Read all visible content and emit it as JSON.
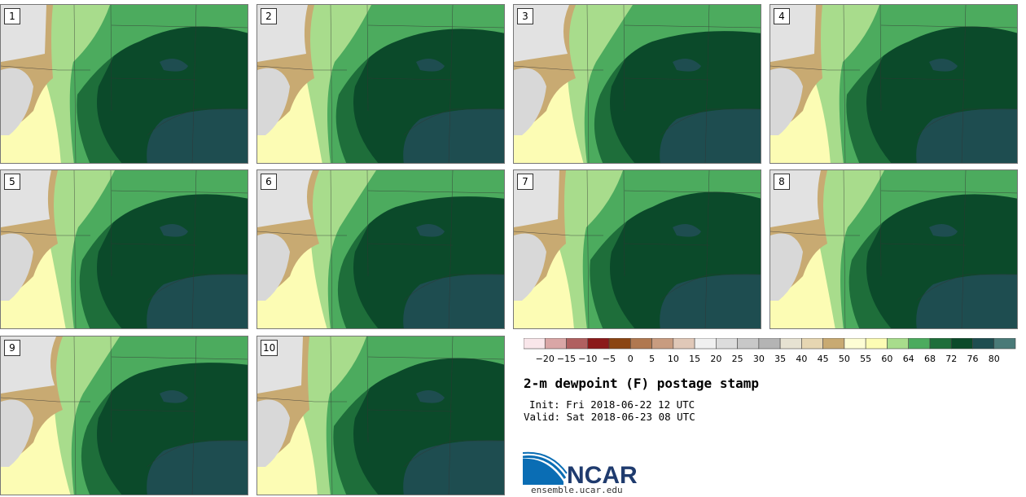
{
  "title": "2-m dewpoint (F) postage stamp",
  "init_label": "Init: Fri 2018-06-22 12 UTC",
  "valid_label": "Valid: Sat 2018-06-23 08 UTC",
  "logo_text": "NCAR",
  "url": "ensemble.ucar.edu",
  "members": [
    {
      "label": "1"
    },
    {
      "label": "2"
    },
    {
      "label": "3"
    },
    {
      "label": "4"
    },
    {
      "label": "5"
    },
    {
      "label": "6"
    },
    {
      "label": "7"
    },
    {
      "label": "8"
    },
    {
      "label": "9"
    },
    {
      "label": "10"
    }
  ],
  "colorbar": {
    "tick_labels": [
      "−20",
      "−15",
      "−10",
      "−5",
      "0",
      "5",
      "10",
      "15",
      "20",
      "25",
      "30",
      "35",
      "40",
      "45",
      "50",
      "55",
      "60",
      "64",
      "68",
      "72",
      "76",
      "80"
    ],
    "colors": [
      "#f9e6ea",
      "#d9a6a6",
      "#b06060",
      "#8b1a1a",
      "#8b4513",
      "#b07850",
      "#c89c80",
      "#e0c8b8",
      "#f0f0f0",
      "#dcdcdc",
      "#c8c8c8",
      "#b4b4b4",
      "#e6e2d2",
      "#e6d6b2",
      "#c8aa72",
      "#fdfdd4",
      "#fcfcb4",
      "#a8dc8c",
      "#4cab5e",
      "#1e6e3a",
      "#0b4a2a",
      "#1e4d50",
      "#4a7a78"
    ]
  },
  "colors": {
    "dry_gray": "#d8d8d8",
    "dry_tan": "#c8aa72",
    "light_yellow": "#fcfcb4",
    "light_green": "#a8dc8c",
    "mid_green": "#4cab5e",
    "dark_green": "#1e6e3a",
    "darkest_green": "#0b4a2a",
    "gulf": "#1e4d50"
  }
}
